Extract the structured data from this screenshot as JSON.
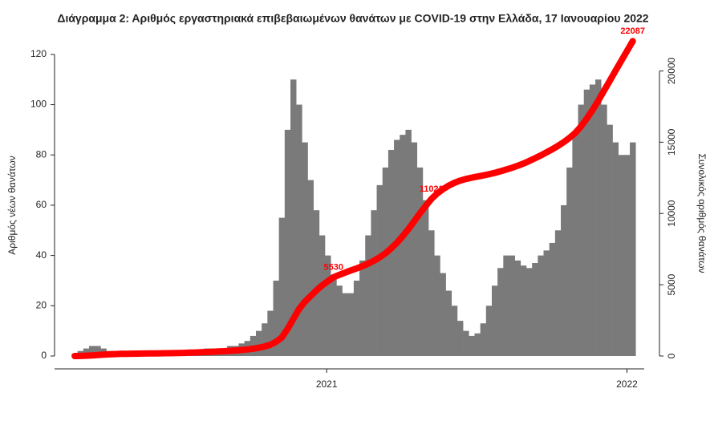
{
  "chart_data": {
    "type": "bar",
    "title": "Διάγραμμα 2: Αριθμός εργαστηριακά επιβεβαιωμένων θανάτων με COVID-19 στην Ελλάδα, 17 Ιανουαρίου 2022",
    "y_label": "Αριθμός νέων θανάτων",
    "y2_label": "Συνολικός αριθμός θανάτων",
    "x": [
      0,
      1,
      2,
      3,
      4,
      5,
      6,
      7,
      8,
      9,
      10,
      11,
      12,
      13,
      14,
      15,
      16,
      17,
      18,
      19,
      20,
      21,
      22,
      23,
      24,
      25,
      26,
      27,
      28,
      29,
      30,
      31,
      32,
      33,
      34,
      35,
      36,
      37,
      38,
      39,
      40,
      41,
      42,
      43,
      44,
      45,
      46,
      47,
      48,
      49,
      50,
      51,
      52,
      53,
      54,
      55,
      56,
      57,
      58,
      59,
      60,
      61,
      62,
      63,
      64,
      65,
      66,
      67,
      68,
      69,
      70,
      71,
      72,
      73,
      74,
      75,
      76,
      77,
      78,
      79,
      80,
      81,
      82,
      83,
      84,
      85,
      86,
      87,
      88,
      89,
      90,
      91,
      92,
      93,
      94,
      95,
      96,
      97
    ],
    "series": [
      {
        "type": "bar",
        "color": "#7a7a7a",
        "values": [
          1,
          2,
          3,
          4,
          4,
          3,
          2,
          2,
          2,
          1,
          1,
          1,
          1,
          1,
          1,
          1,
          1,
          1,
          2,
          2,
          2,
          2,
          2,
          3,
          3,
          3,
          3,
          4,
          4,
          5,
          6,
          8,
          10,
          13,
          18,
          30,
          55,
          90,
          110,
          100,
          85,
          70,
          58,
          48,
          40,
          32,
          28,
          25,
          25,
          30,
          38,
          48,
          58,
          68,
          75,
          82,
          86,
          88,
          90,
          85,
          75,
          62,
          50,
          40,
          33,
          26,
          20,
          14,
          10,
          8,
          9,
          13,
          20,
          28,
          35,
          40,
          40,
          38,
          36,
          35,
          37,
          40,
          42,
          45,
          50,
          60,
          75,
          88,
          100,
          106,
          108,
          110,
          100,
          92,
          85,
          80,
          80,
          85
        ]
      },
      {
        "type": "line",
        "color": "#ff0000",
        "axis": "y2",
        "values": [
          0,
          5,
          20,
          45,
          75,
          100,
          120,
          135,
          150,
          160,
          165,
          170,
          175,
          180,
          185,
          190,
          195,
          200,
          210,
          220,
          235,
          250,
          265,
          280,
          300,
          320,
          340,
          365,
          390,
          420,
          460,
          510,
          580,
          670,
          790,
          1000,
          1300,
          1900,
          2600,
          3300,
          3800,
          4200,
          4600,
          4950,
          5250,
          5530,
          5700,
          5850,
          6000,
          6150,
          6300,
          6480,
          6680,
          6920,
          7200,
          7550,
          7950,
          8400,
          8900,
          9450,
          10000,
          10520,
          11021,
          11400,
          11700,
          11950,
          12150,
          12300,
          12420,
          12510,
          12590,
          12670,
          12750,
          12850,
          12960,
          13080,
          13200,
          13350,
          13500,
          13680,
          13870,
          14070,
          14280,
          14500,
          14740,
          15000,
          15300,
          15650,
          16100,
          16650,
          17250,
          17900,
          18600,
          19300,
          20000,
          20700,
          21400,
          22087
        ]
      }
    ],
    "annotations": [
      {
        "x": 45,
        "value": 5530
      },
      {
        "x": 62,
        "value": 11021
      },
      {
        "x": 97,
        "value": 22087
      }
    ],
    "xlim": [
      -3.5,
      99
    ],
    "xticks": [
      {
        "value": 43.8,
        "label": "2021"
      },
      {
        "value": 96,
        "label": "2022"
      }
    ],
    "ylim": [
      0,
      122.5
    ],
    "yticks": [
      0,
      20,
      40,
      60,
      80,
      100,
      120
    ],
    "y2lim": [
      0,
      21600
    ],
    "y2ticks": [
      0,
      5000,
      10000,
      15000,
      20000
    ],
    "grid": false
  }
}
